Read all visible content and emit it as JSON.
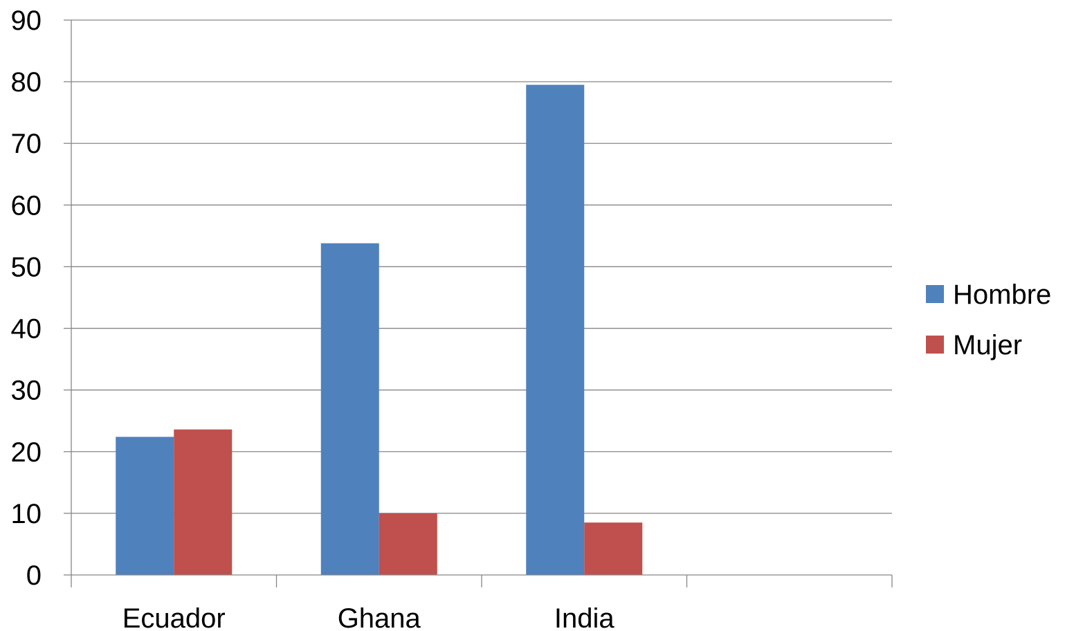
{
  "chart_data": {
    "type": "bar",
    "categories": [
      "Ecuador",
      "Ghana",
      "India",
      ""
    ],
    "series": [
      {
        "name": "Hombre",
        "color": "#4F81BD",
        "values": [
          22.4,
          53.8,
          79.5,
          null
        ]
      },
      {
        "name": "Mujer",
        "color": "#C0504D",
        "values": [
          23.6,
          10.0,
          8.5,
          null
        ]
      }
    ],
    "title": "",
    "xlabel": "",
    "ylabel": "",
    "ylim": [
      0,
      90
    ],
    "yticks": [
      0,
      10,
      20,
      30,
      40,
      50,
      60,
      70,
      80,
      90
    ],
    "grid": true,
    "legend_position": "right"
  }
}
